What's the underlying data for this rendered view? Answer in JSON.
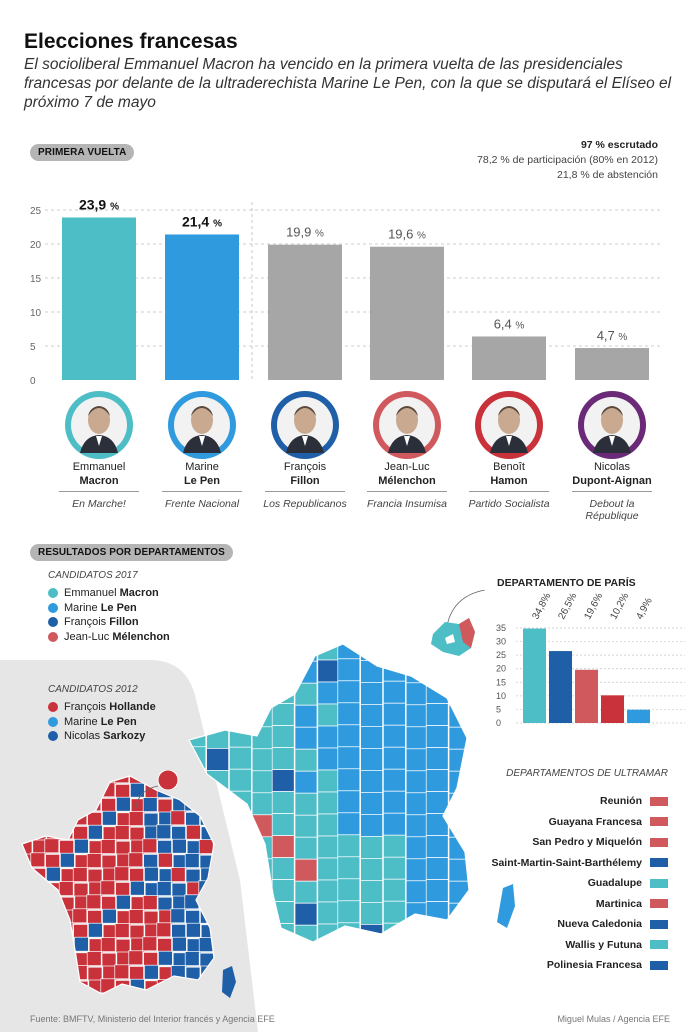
{
  "header": {
    "title": "Elecciones francesas",
    "subtitle": "El socioliberal Emmanuel Macron ha vencido en la primera vuelta de las presidenciales francesas por delante de la ultraderechista Marine Le Pen, con la que se disputará el Elíseo el próximo 7 de mayo"
  },
  "section1": {
    "label": "PRIMERA VUELTA",
    "stat1": "97 % escrutado",
    "stat2": "78,2 % de participación (80% en 2012)",
    "stat3": "21,8 % de abstención"
  },
  "candidates": [
    {
      "first": "Emmanuel",
      "last": "Macron",
      "party": "En Marche!",
      "value_label": "23,9",
      "pct": "%",
      "color": "#4dbdc6"
    },
    {
      "first": "Marine",
      "last": "Le Pen",
      "party": "Frente Nacional",
      "value_label": "21,4",
      "pct": "%",
      "color": "#2f9bde"
    },
    {
      "first": "François",
      "last": "Fillon",
      "party": "Los Republicanos",
      "value_label": "19,9",
      "pct": "%",
      "color": "#1f5fa8"
    },
    {
      "first": "Jean-Luc",
      "last": "Mélenchon",
      "party": "Francia Insumisa",
      "value_label": "19,6",
      "pct": "%",
      "color": "#d0595e"
    },
    {
      "first": "Benoît",
      "last": "Hamon",
      "party": "Partido Socialista",
      "value_label": "6,4",
      "pct": "%",
      "color": "#c9323a"
    },
    {
      "first": "Nicolas",
      "last": "Dupont-Aignan",
      "party": "Debout la République",
      "value_label": "4,7",
      "pct": "%",
      "color": "#6a2a78"
    }
  ],
  "chart_data": [
    {
      "type": "bar",
      "title": "PRIMERA VUELTA",
      "categories": [
        "Emmanuel Macron",
        "Marine Le Pen",
        "François Fillon",
        "Jean-Luc Mélenchon",
        "Benoît Hamon",
        "Nicolas Dupont-Aignan"
      ],
      "values": [
        23.9,
        21.4,
        19.9,
        19.6,
        6.4,
        4.7
      ],
      "colors": [
        "#4dbdc6",
        "#2f9bde",
        "#a6a6a6",
        "#a6a6a6",
        "#a6a6a6",
        "#a6a6a6"
      ],
      "ylim": [
        0,
        25
      ],
      "yticks": [
        "0",
        "5",
        "10",
        "15",
        "20",
        "25"
      ],
      "grid": true
    },
    {
      "type": "bar",
      "title": "DEPARTAMENTO DE PARÍS",
      "categories": [
        "Emmanuel Macron",
        "François Fillon",
        "Jean-Luc Mélenchon",
        "Benoît Hamon",
        "Marine Le Pen"
      ],
      "values": [
        34.8,
        26.5,
        19.6,
        10.2,
        4.9
      ],
      "labels": [
        "34,8%",
        "26,5%",
        "19,6%",
        "10,2%",
        "4,9%"
      ],
      "colors": [
        "#4dbdc6",
        "#1f5fa8",
        "#d0595e",
        "#c9323a",
        "#2f9bde"
      ],
      "ylim": [
        0,
        35
      ],
      "yticks": [
        "0",
        "5",
        "10",
        "15",
        "20",
        "25",
        "30",
        "35"
      ],
      "grid": true
    }
  ],
  "section2": {
    "label": "RESULTADOS POR DEPARTAMENTOS",
    "cand2017_title": "CANDIDATOS 2017",
    "legend2017": [
      {
        "first": "Emmanuel",
        "last": "Macron",
        "color": "#4dbdc6"
      },
      {
        "first": "Marine",
        "last": "Le Pen",
        "color": "#2f9bde"
      },
      {
        "first": "François",
        "last": "Fillon",
        "color": "#1f5fa8"
      },
      {
        "first": "Jean-Luc",
        "last": "Mélenchon",
        "color": "#d0595e"
      }
    ],
    "cand2012_title": "CANDIDATOS 2012",
    "legend2012": [
      {
        "first": "François",
        "last": "Hollande",
        "color": "#c9323a"
      },
      {
        "first": "Marine",
        "last": "Le Pen",
        "color": "#2f9bde"
      },
      {
        "first": "Nicolas",
        "last": "Sarkozy",
        "color": "#1f5fa8"
      }
    ],
    "paris_title": "DEPARTAMENTO DE PARÍS",
    "overseas_title": "DEPARTAMENTOS DE ULTRAMAR",
    "overseas": [
      {
        "name": "Reunión",
        "color": "#d0595e"
      },
      {
        "name": "Guayana Francesa",
        "color": "#d0595e"
      },
      {
        "name": "San Pedro y Miquelón",
        "color": "#d0595e"
      },
      {
        "name": "Saint-Martin-Saint-Barthélemy",
        "color": "#1f5fa8"
      },
      {
        "name": "Guadalupe",
        "color": "#4dbdc6"
      },
      {
        "name": "Martinica",
        "color": "#d0595e"
      },
      {
        "name": "Nueva Caledonia",
        "color": "#1f5fa8"
      },
      {
        "name": "Wallis y Futuna",
        "color": "#4dbdc6"
      },
      {
        "name": "Polinesia Francesa",
        "color": "#1f5fa8"
      }
    ]
  },
  "footer": {
    "source": "Fuente: BMFTV, Ministerio del Interior francés y Agencia EFE",
    "credit": "Miguel Mulas / Agencia EFE"
  }
}
